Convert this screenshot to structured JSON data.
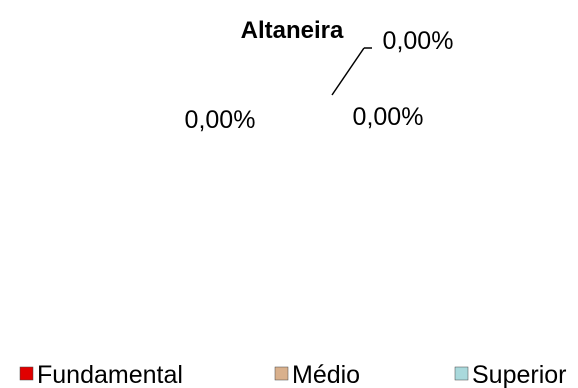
{
  "chart_data": {
    "type": "pie",
    "title": "Altaneira",
    "categories": [
      "Fundamental",
      "Médio",
      "Superior"
    ],
    "values": [
      0,
      0,
      0
    ],
    "data_labels": [
      "0,00%",
      "0,00%",
      "0,00%"
    ],
    "legend_position": "bottom",
    "colors": [
      "#e00000",
      "#d9b08c",
      "#a9d9dc"
    ]
  }
}
